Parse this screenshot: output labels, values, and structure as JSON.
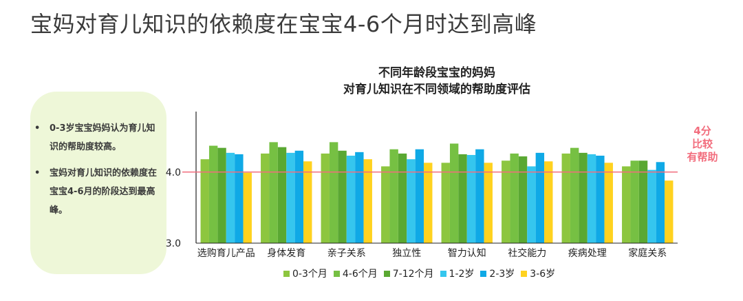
{
  "page_title": "宝妈对育儿知识的依赖度在宝宝4-6个月时达到高峰",
  "callout": {
    "bullet_symbol": "•",
    "items": [
      "0-3岁宝宝妈妈认为育儿知识的帮助度较高。",
      "宝妈对育儿知识的依赖度在宝宝4-6月的阶段达到最高峰。"
    ]
  },
  "annotation": {
    "lines": [
      "4分",
      "比较",
      "有帮助"
    ]
  },
  "chart_data": {
    "type": "bar",
    "title_lines": [
      "不同年龄段宝宝的妈妈",
      "对育儿知识在不同领域的帮助度评估"
    ],
    "categories": [
      "选购育儿产品",
      "身体发育",
      "亲子关系",
      "独立性",
      "智力认知",
      "社交能力",
      "疾病处理",
      "家庭关系"
    ],
    "ylim": [
      3.0,
      4.85
    ],
    "yticks": [
      3.0,
      4.0
    ],
    "ytick_labels": [
      "3.0",
      "4.0"
    ],
    "reference_line": 4.0,
    "reference_color": "#f26d7d",
    "series": [
      {
        "name": "0-3个月",
        "color": "#8dc63f",
        "values": [
          4.18,
          4.26,
          4.26,
          4.08,
          4.13,
          4.16,
          4.26,
          4.08
        ]
      },
      {
        "name": "4-6个月",
        "color": "#76c043",
        "values": [
          4.37,
          4.42,
          4.42,
          4.32,
          4.4,
          4.26,
          4.34,
          4.16
        ]
      },
      {
        "name": "7-12个月",
        "color": "#5aa832",
        "values": [
          4.34,
          4.35,
          4.3,
          4.26,
          4.25,
          4.22,
          4.27,
          4.16
        ]
      },
      {
        "name": "1-2岁",
        "color": "#35c6ee",
        "values": [
          4.27,
          4.27,
          4.23,
          4.18,
          4.24,
          4.08,
          4.25,
          4.03
        ]
      },
      {
        "name": "2-3岁",
        "color": "#0fa9e6",
        "values": [
          4.25,
          4.3,
          4.28,
          4.32,
          4.32,
          4.27,
          4.23,
          4.14
        ]
      },
      {
        "name": "3-6岁",
        "color": "#ffd21f",
        "values": [
          3.99,
          4.15,
          4.18,
          4.13,
          4.13,
          4.15,
          4.13,
          3.88
        ]
      }
    ]
  }
}
